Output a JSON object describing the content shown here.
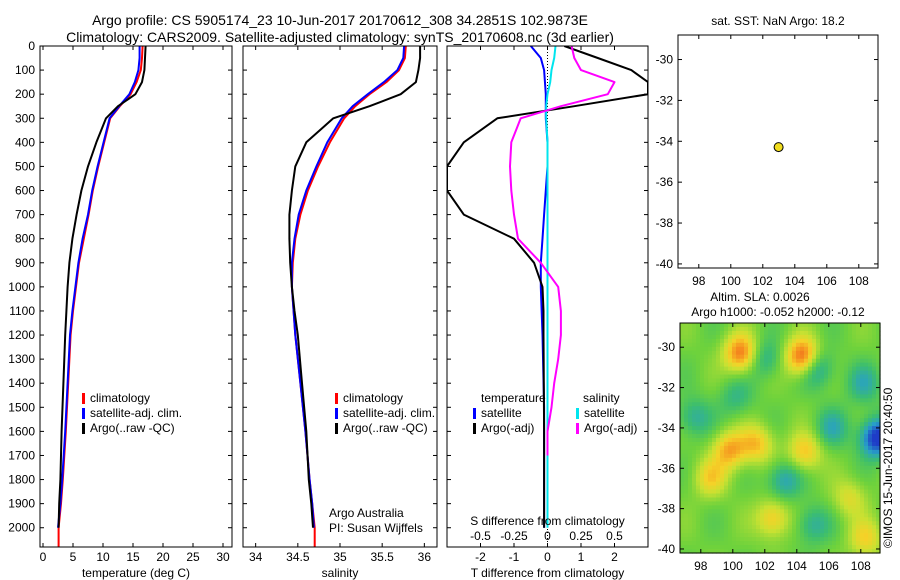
{
  "header": {
    "line1": "Argo profile: CS 5905174_23 10-Jun-2017 20170612_308 34.2851S 102.9873E",
    "line2": "Climatology: CARS2009. Satellite-adjusted climatology: synTS_20170608.nc (3d earlier)"
  },
  "depth_axis": {
    "ylim": [
      0,
      2080
    ],
    "ticks": [
      0,
      100,
      200,
      300,
      400,
      500,
      600,
      700,
      800,
      900,
      1000,
      1100,
      1200,
      1300,
      1400,
      1500,
      1600,
      1700,
      1800,
      1900,
      2000
    ]
  },
  "credit": "©IMOS 15-Jun-2017 20:40:50",
  "chart_data": [
    {
      "id": "temperature",
      "type": "line",
      "xlabel": "temperature (deg C)",
      "xlim": [
        -0.5,
        31.5
      ],
      "xticks": [
        "0",
        "5",
        "10",
        "15",
        "20",
        "25",
        "30"
      ],
      "xtick_values": [
        0,
        5,
        10,
        15,
        20,
        25,
        30
      ],
      "legend": [
        {
          "label": "climatology",
          "color": "#ff0000"
        },
        {
          "label": "satellite-adj. clim.",
          "color": "#0000ff"
        },
        {
          "label": "Argo(..raw -QC)",
          "color": "#000000"
        }
      ],
      "series": [
        {
          "name": "climatology",
          "color": "#ff0000",
          "width": 2,
          "x": [
            16.6,
            16.5,
            16.3,
            15.6,
            14.6,
            12.8,
            11.2,
            10.2,
            9.2,
            8.3,
            7.6,
            6.8,
            6.0,
            5.5,
            5.0,
            4.6,
            4.2,
            3.8,
            3.3,
            3.0,
            2.6,
            2.6
          ],
          "y": [
            0,
            50,
            100,
            150,
            200,
            250,
            300,
            400,
            500,
            600,
            700,
            800,
            900,
            1000,
            1100,
            1200,
            1400,
            1600,
            1800,
            1900,
            2000,
            2080
          ]
        },
        {
          "name": "satellite-adj. clim.",
          "color": "#0000ff",
          "width": 2,
          "x": [
            16.1,
            16.1,
            15.9,
            15.3,
            14.4,
            12.7,
            11.1,
            10.1,
            9.1,
            8.2,
            7.5,
            6.6,
            5.9,
            5.4,
            4.9,
            4.5,
            4.1,
            3.7,
            3.2,
            2.9,
            2.5
          ],
          "y": [
            0,
            50,
            100,
            150,
            200,
            250,
            300,
            400,
            500,
            600,
            700,
            800,
            900,
            1000,
            1100,
            1200,
            1400,
            1600,
            1800,
            1900,
            2000
          ]
        },
        {
          "name": "Argo",
          "color": "#000000",
          "width": 2,
          "x": [
            17.1,
            17.0,
            16.9,
            16.5,
            15.4,
            12.5,
            10.5,
            8.9,
            7.5,
            6.4,
            5.6,
            4.9,
            4.4,
            4.1,
            3.9,
            3.7,
            3.4,
            3.1,
            2.9,
            2.7,
            2.6
          ],
          "y": [
            0,
            50,
            100,
            150,
            200,
            250,
            300,
            400,
            500,
            600,
            700,
            800,
            900,
            1000,
            1100,
            1200,
            1400,
            1600,
            1800,
            1900,
            2000
          ]
        }
      ]
    },
    {
      "id": "salinity",
      "type": "line",
      "xlabel": "salinity",
      "xlim": [
        33.85,
        36.15
      ],
      "xticks": [
        "34",
        "34.5",
        "35",
        "35.5",
        "36"
      ],
      "xtick_values": [
        34,
        34.5,
        35,
        35.5,
        36
      ],
      "legend": [
        {
          "label": "climatology",
          "color": "#ff0000"
        },
        {
          "label": "satellite-adj. clim.",
          "color": "#0000ff"
        },
        {
          "label": "Argo(..raw -QC)",
          "color": "#000000"
        }
      ],
      "annotations": [
        "Argo Australia",
        "PI: Susan Wijffels"
      ],
      "series": [
        {
          "name": "climatology",
          "color": "#ff0000",
          "width": 2,
          "x": [
            35.78,
            35.77,
            35.7,
            35.55,
            35.35,
            35.18,
            35.05,
            34.88,
            34.74,
            34.62,
            34.53,
            34.47,
            34.44,
            34.43,
            34.45,
            34.47,
            34.53,
            34.59,
            34.64,
            34.67,
            34.7,
            34.7
          ],
          "y": [
            0,
            50,
            100,
            150,
            200,
            250,
            300,
            400,
            500,
            600,
            700,
            800,
            900,
            1000,
            1100,
            1200,
            1400,
            1600,
            1800,
            1900,
            2000,
            2080
          ]
        },
        {
          "name": "satellite-adj. clim.",
          "color": "#0000ff",
          "width": 2,
          "x": [
            35.76,
            35.75,
            35.68,
            35.52,
            35.33,
            35.15,
            35.02,
            34.85,
            34.72,
            34.6,
            34.51,
            34.46,
            34.43,
            34.43,
            34.45,
            34.47,
            34.53,
            34.59,
            34.64,
            34.67,
            34.69
          ],
          "y": [
            0,
            50,
            100,
            150,
            200,
            250,
            300,
            400,
            500,
            600,
            700,
            800,
            900,
            1000,
            1100,
            1200,
            1400,
            1600,
            1800,
            1900,
            2000
          ]
        },
        {
          "name": "Argo",
          "color": "#000000",
          "width": 2,
          "x": [
            35.95,
            35.95,
            35.93,
            35.9,
            35.72,
            35.35,
            34.92,
            34.6,
            34.47,
            34.43,
            34.4,
            34.4,
            34.41,
            34.43,
            34.46,
            34.5,
            34.55,
            34.6,
            34.63,
            34.66,
            34.68
          ],
          "y": [
            0,
            50,
            100,
            150,
            200,
            250,
            300,
            400,
            500,
            600,
            700,
            800,
            900,
            1000,
            1100,
            1200,
            1400,
            1600,
            1800,
            1900,
            2000
          ]
        }
      ]
    },
    {
      "id": "difference",
      "type": "line",
      "xlabel": "T difference from climatology",
      "xlabel_top": "S difference from climatology",
      "xlim": [
        -3,
        3
      ],
      "xticks": [
        "-2",
        "-1",
        "0",
        "1",
        "2"
      ],
      "xtick_values": [
        -2,
        -1,
        0,
        1,
        2
      ],
      "xticks_top": [
        "-0.5",
        "-0.25",
        "0",
        "0.25",
        "0.5"
      ],
      "xtick_top_values": [
        -0.5,
        -0.25,
        0,
        0.25,
        0.5
      ],
      "s_scale": 4,
      "legend_titles": [
        "temperature",
        "salinity"
      ],
      "legend": [
        {
          "label": "satellite",
          "color": "#0000ff",
          "group": "temperature"
        },
        {
          "label": "Argo(-adj)",
          "color": "#000000",
          "group": "temperature"
        },
        {
          "label": "satellite",
          "color": "#00e5ee",
          "group": "salinity"
        },
        {
          "label": "Argo(-adj)",
          "color": "#ff00ff",
          "group": "salinity"
        }
      ],
      "series": [
        {
          "name": "T satellite",
          "color": "#0000ff",
          "width": 2,
          "x": [
            -0.5,
            -0.2,
            -0.1,
            -0.05,
            -0.05,
            0,
            0,
            -0.05,
            -0.1,
            -0.15,
            -0.2,
            -0.2,
            -0.15,
            -0.1,
            -0.1,
            -0.1
          ],
          "y": [
            0,
            50,
            100,
            200,
            300,
            400,
            500,
            600,
            700,
            800,
            900,
            1000,
            1200,
            1500,
            1800,
            2000
          ]
        },
        {
          "name": "T Argo(-adj)",
          "color": "#000000",
          "width": 2,
          "x": [
            0.5,
            1.5,
            2.5,
            3,
            3,
            0.8,
            -1.5,
            -2.5,
            -3,
            -3,
            -2.5,
            -1.0,
            -0.4,
            -0.15,
            -0.12,
            -0.12,
            -0.1,
            -0.1
          ],
          "y": [
            0,
            50,
            100,
            150,
            200,
            250,
            300,
            400,
            500,
            600,
            700,
            800,
            900,
            1000,
            1100,
            1200,
            1600,
            2000
          ]
        },
        {
          "name": "S satellite",
          "color": "#00e5ee",
          "width": 2,
          "x": [
            0.06,
            0.05,
            0.03,
            0.02,
            0.0,
            -0.01,
            -0.01,
            0,
            0,
            0,
            0,
            0,
            0,
            0,
            0
          ],
          "y": [
            0,
            50,
            100,
            150,
            200,
            250,
            300,
            400,
            600,
            800,
            1000,
            1200,
            1500,
            1800,
            2000
          ]
        },
        {
          "name": "S Argo(-adj)",
          "color": "#ff00ff",
          "width": 2,
          "x": [
            0.18,
            0.2,
            0.25,
            0.5,
            0.45,
            0.1,
            -0.2,
            -0.27,
            -0.28,
            -0.27,
            -0.25,
            -0.22,
            -0.05,
            0.08,
            0.1,
            0.1,
            0.08,
            0.05,
            0.03,
            0.0,
            0.0
          ],
          "y": [
            0,
            50,
            100,
            150,
            200,
            250,
            300,
            400,
            500,
            600,
            700,
            800,
            900,
            1000,
            1100,
            1200,
            1300,
            1400,
            1500,
            1600,
            1700
          ]
        }
      ]
    },
    {
      "id": "location",
      "type": "scatter",
      "title": "sat. SST: NaN Argo: 18.2",
      "xlim": [
        96.7,
        109.2
      ],
      "ylim": [
        -40.2,
        -28.8
      ],
      "xticks": [
        "98",
        "100",
        "102",
        "104",
        "106",
        "108"
      ],
      "xtick_values": [
        98,
        100,
        102,
        104,
        106,
        108
      ],
      "yticks": [
        "-30",
        "-32",
        "-34",
        "-36",
        "-38",
        "-40"
      ],
      "ytick_values": [
        -30,
        -32,
        -34,
        -36,
        -38,
        -40
      ],
      "points": [
        {
          "x": 102.9873,
          "y": -34.2851,
          "color": "#f0dc1e"
        }
      ]
    },
    {
      "id": "sla",
      "type": "heatmap",
      "title1": "Altim. SLA: 0.0026",
      "title2": "Argo h1000: -0.052 h2000: -0.12",
      "xlim": [
        96.7,
        109.2
      ],
      "ylim": [
        -40.2,
        -28.8
      ],
      "xticks": [
        "98",
        "100",
        "102",
        "104",
        "106",
        "108"
      ],
      "xtick_values": [
        98,
        100,
        102,
        104,
        106,
        108
      ],
      "yticks": [
        "-30",
        "-32",
        "-34",
        "-36",
        "-38",
        "-40"
      ],
      "ytick_values": [
        -30,
        -32,
        -34,
        -36,
        -38,
        -40
      ],
      "base_value": 0.45,
      "blobs": [
        {
          "x": 100.5,
          "y": -30.3,
          "v": 0.45
        },
        {
          "x": 104.4,
          "y": -30.5,
          "v": 0.55
        },
        {
          "x": 99.8,
          "y": -35.1,
          "v": 0.35
        },
        {
          "x": 101.5,
          "y": -34.8,
          "v": 0.3
        },
        {
          "x": 104.5,
          "y": -35.2,
          "v": 0.3
        },
        {
          "x": 98.6,
          "y": -36.5,
          "v": 0.25
        },
        {
          "x": 102.5,
          "y": -38.5,
          "v": 0.3
        },
        {
          "x": 107.3,
          "y": -37.5,
          "v": 0.2
        },
        {
          "x": 108.3,
          "y": -39.5,
          "v": 0.25
        },
        {
          "x": 105.2,
          "y": -31.0,
          "v": -0.3
        },
        {
          "x": 102.0,
          "y": -30.6,
          "v": -0.2
        },
        {
          "x": 97.6,
          "y": -33.5,
          "v": -0.2
        },
        {
          "x": 103.2,
          "y": -36.6,
          "v": -0.25
        },
        {
          "x": 106.2,
          "y": -34.0,
          "v": -0.2
        },
        {
          "x": 108.2,
          "y": -31.8,
          "v": -0.2
        },
        {
          "x": 109.0,
          "y": -34.5,
          "v": -0.5
        },
        {
          "x": 100.2,
          "y": -32.5,
          "v": -0.15
        },
        {
          "x": 105.0,
          "y": -38.8,
          "v": -0.2
        }
      ]
    }
  ]
}
